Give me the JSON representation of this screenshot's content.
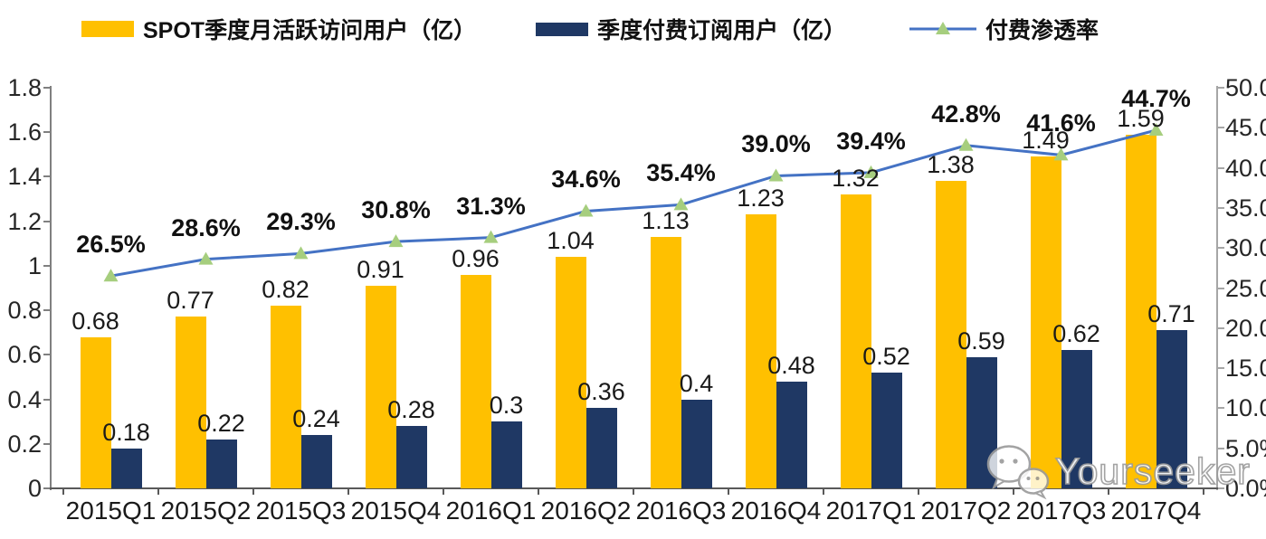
{
  "legend": {
    "items": [
      {
        "label": "SPOT季度月活跃访问用户（亿）",
        "type": "bar",
        "color": "#FFC000"
      },
      {
        "label": "季度付费订阅用户（亿）",
        "type": "bar",
        "color": "#1F3864"
      },
      {
        "label": "付费渗透率",
        "type": "line",
        "color": "#4472C4",
        "marker_color": "#A6CE7E"
      }
    ]
  },
  "chart_data": {
    "type": "combo-bar-line",
    "title": "",
    "categories": [
      "2015Q1",
      "2015Q2",
      "2015Q3",
      "2015Q4",
      "2016Q1",
      "2016Q2",
      "2016Q3",
      "2016Q4",
      "2017Q1",
      "2017Q2",
      "2017Q3",
      "2017Q4"
    ],
    "series": [
      {
        "name": "SPOT季度月活跃访问用户（亿）",
        "type": "bar",
        "axis": "left",
        "color": "#FFC000",
        "values": [
          0.68,
          0.77,
          0.82,
          0.91,
          0.96,
          1.04,
          1.13,
          1.23,
          1.32,
          1.38,
          1.49,
          1.59
        ],
        "labels": [
          "0.68",
          "0.77",
          "0.82",
          "0.91",
          "0.96",
          "1.04",
          "1.13",
          "1.23",
          "1.32",
          "1.38",
          "1.49",
          "1.59"
        ]
      },
      {
        "name": "季度付费订阅用户（亿）",
        "type": "bar",
        "axis": "left",
        "color": "#1F3864",
        "values": [
          0.18,
          0.22,
          0.24,
          0.28,
          0.3,
          0.36,
          0.4,
          0.48,
          0.52,
          0.59,
          0.62,
          0.71
        ],
        "labels": [
          "0.18",
          "0.22",
          "0.24",
          "0.28",
          "0.3",
          "0.36",
          "0.4",
          "0.48",
          "0.52",
          "0.59",
          "0.62",
          "0.71"
        ]
      },
      {
        "name": "付费渗透率",
        "type": "line",
        "axis": "right",
        "color": "#4472C4",
        "marker": "triangle",
        "marker_color": "#A6CE7E",
        "values": [
          26.5,
          28.6,
          29.3,
          30.8,
          31.3,
          34.6,
          35.4,
          39.0,
          39.4,
          42.8,
          41.6,
          44.7
        ],
        "labels": [
          "26.5%",
          "28.6%",
          "29.3%",
          "30.8%",
          "31.3%",
          "34.6%",
          "35.4%",
          "39.0%",
          "39.4%",
          "42.8%",
          "41.6%",
          "44.7%"
        ]
      }
    ],
    "left_axis": {
      "min": 0,
      "max": 1.8,
      "step": 0.2,
      "ticks": [
        "0",
        "0.2",
        "0.4",
        "0.6",
        "0.8",
        "1",
        "1.2",
        "1.4",
        "1.6",
        "1.8"
      ]
    },
    "right_axis": {
      "min": 0,
      "max": 50,
      "step": 5,
      "ticks": [
        "0.0%",
        "5.0%",
        "10.0%",
        "15.0%",
        "20.0%",
        "25.0%",
        "30.0%",
        "35.0%",
        "40.0%",
        "45.0%",
        "50.0%"
      ]
    },
    "grid": false,
    "legend_position": "top"
  },
  "watermark": {
    "text": "Yourseeker",
    "icon": "wechat-icon"
  }
}
